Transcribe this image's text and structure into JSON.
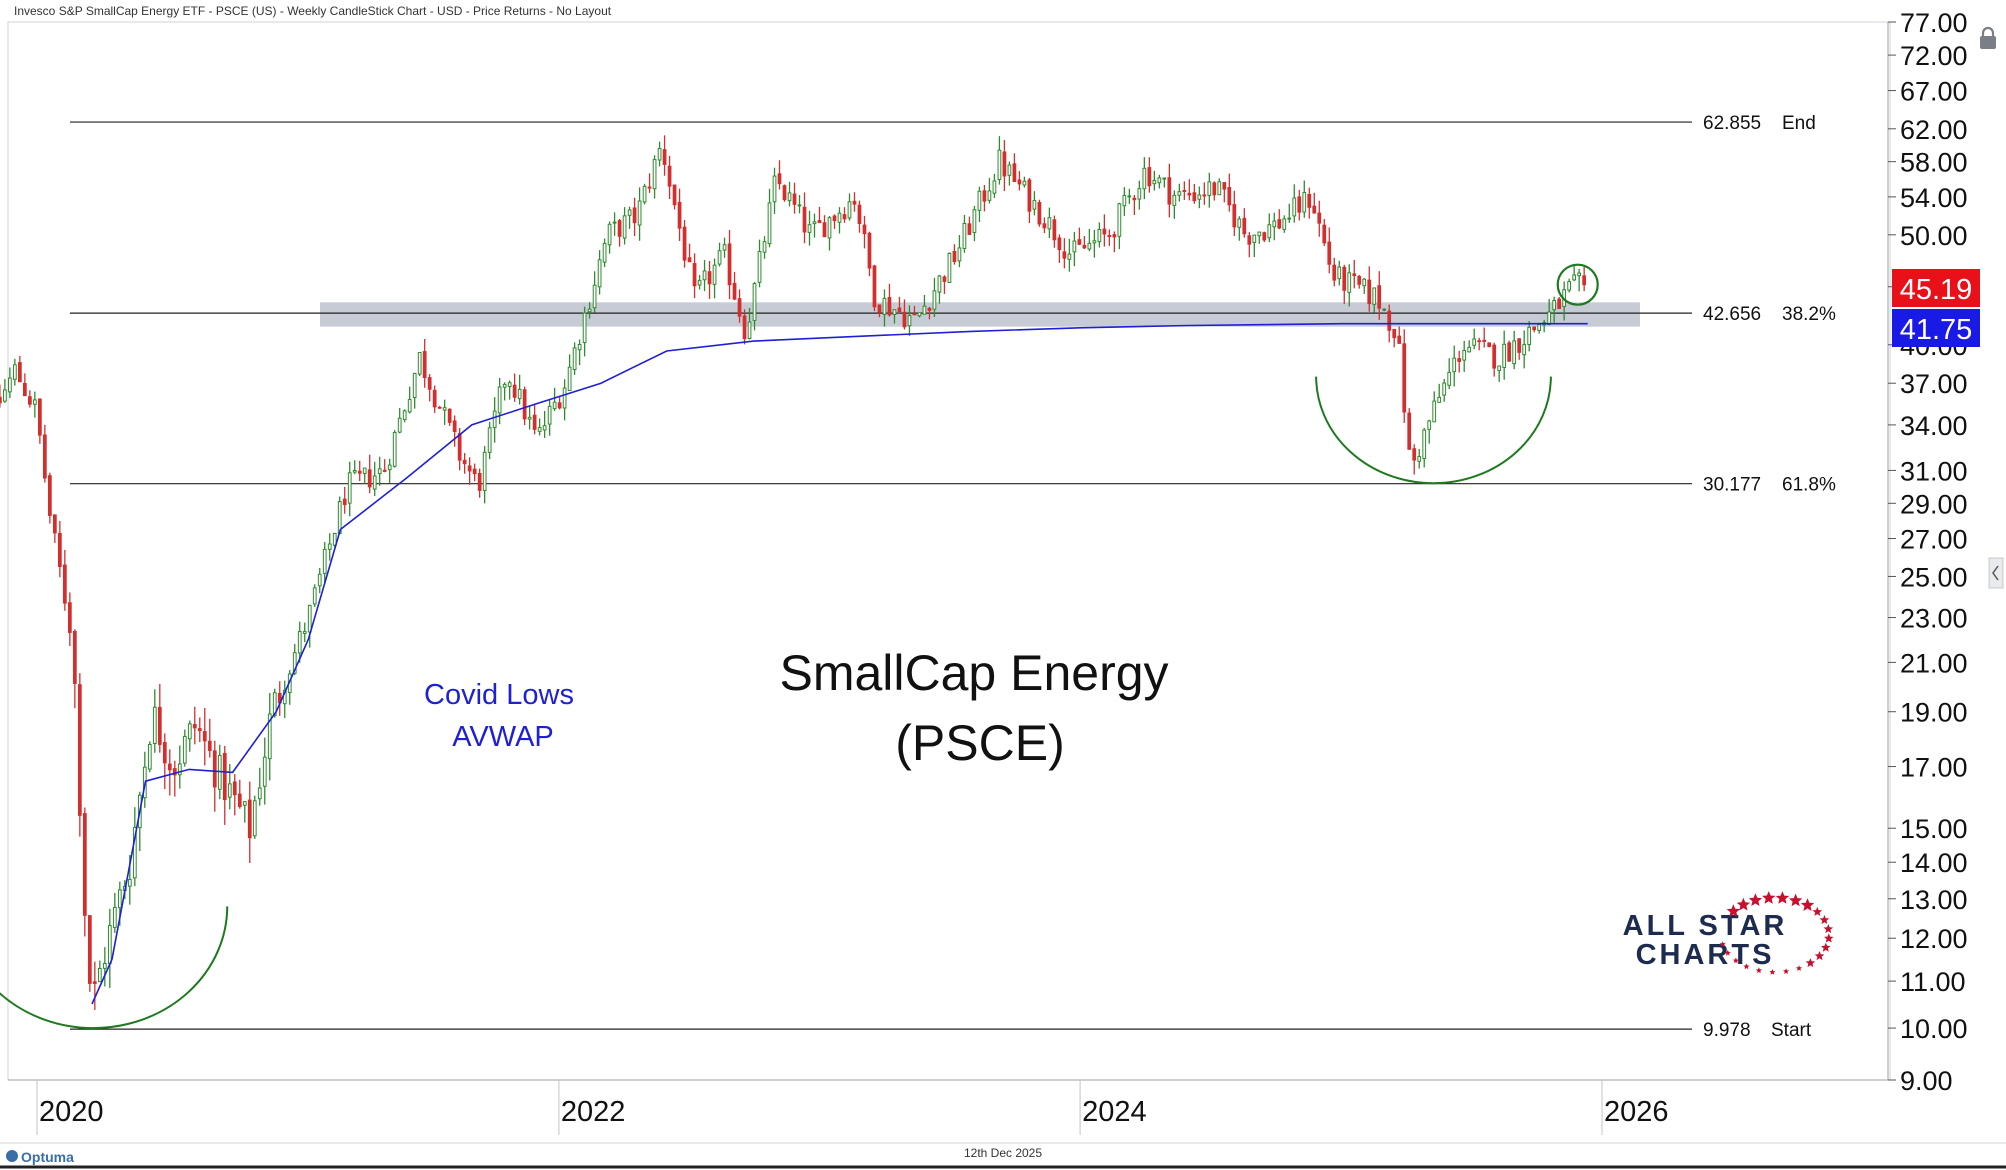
{
  "header": {
    "description": "Invesco S&P SmallCap Energy ETF - PSCE (US) - Weekly CandleStick Chart - USD - Price Returns - No Layout"
  },
  "footer": {
    "brand": "Optuma",
    "date": "12th Dec 2025"
  },
  "chart_title": {
    "line1": "SmallCap Energy",
    "line2": "(PSCE)"
  },
  "avwap_label": {
    "line1": "Covid Lows",
    "line2": "AVWAP"
  },
  "logo": {
    "line1": "ALL STAR",
    "line2": "CHARTS"
  },
  "price_badges": {
    "last_price": "45.19",
    "avwap_value": "41.75"
  },
  "colors": {
    "up": "#2e8b2e",
    "down": "#d32f2f",
    "avwap": "#1f1fd6",
    "arc": "#1e7a1e",
    "last_badge": "#e8111a",
    "avwap_badge": "#1a1ae6",
    "zone": "#b3bac8",
    "logo_navy": "#1d2b4f",
    "logo_red": "#c8102e"
  },
  "chart_data": {
    "type": "candlestick",
    "scale": "log",
    "ylim": [
      9.0,
      77.0
    ],
    "xlim": [
      "2019-09-01",
      "2026-12-31"
    ],
    "x_ticks": [
      "2020",
      "2022",
      "2024",
      "2026"
    ],
    "y_ticks": [
      "77.00",
      "72.00",
      "67.00",
      "62.00",
      "58.00",
      "54.00",
      "50.00",
      "45.00",
      "40.00",
      "37.00",
      "34.00",
      "31.00",
      "29.00",
      "27.00",
      "25.00",
      "23.00",
      "21.00",
      "19.00",
      "17.00",
      "15.00",
      "14.00",
      "13.00",
      "12.00",
      "11.00",
      "10.00",
      "9.00"
    ],
    "fib_levels": [
      {
        "value": 62.855,
        "value_label": "62.855",
        "tag": "End"
      },
      {
        "value": 42.656,
        "value_label": "42.656",
        "tag": "38.2%"
      },
      {
        "value": 30.177,
        "value_label": "30.177",
        "tag": "61.8%"
      },
      {
        "value": 9.978,
        "value_label": "9.978",
        "tag": "Start"
      }
    ],
    "resistance_zone": [
      41.5,
      43.6
    ],
    "price_path": [
      [
        "2019-09-01",
        29.5
      ],
      [
        "2019-10-15",
        33
      ],
      [
        "2019-12-01",
        38
      ],
      [
        "2019-12-31",
        35
      ],
      [
        "2020-01-20",
        28
      ],
      [
        "2020-02-20",
        22
      ],
      [
        "2020-03-10",
        12
      ],
      [
        "2020-03-18",
        10.5
      ],
      [
        "2020-04-10",
        12
      ],
      [
        "2020-05-10",
        14
      ],
      [
        "2020-06-10",
        19
      ],
      [
        "2020-07-10",
        17
      ],
      [
        "2020-08-10",
        18.5
      ],
      [
        "2020-09-10",
        16.8
      ],
      [
        "2020-10-25",
        15
      ],
      [
        "2020-11-25",
        19
      ],
      [
        "2021-01-15",
        23
      ],
      [
        "2021-03-10",
        30
      ],
      [
        "2021-05-01",
        31
      ],
      [
        "2021-06-20",
        39
      ],
      [
        "2021-08-15",
        32
      ],
      [
        "2021-09-10",
        30
      ],
      [
        "2021-10-20",
        38
      ],
      [
        "2021-12-01",
        33
      ],
      [
        "2022-01-10",
        37
      ],
      [
        "2022-03-10",
        50
      ],
      [
        "2022-04-20",
        52
      ],
      [
        "2022-05-25",
        60
      ],
      [
        "2022-07-10",
        44
      ],
      [
        "2022-08-20",
        48
      ],
      [
        "2022-09-20",
        41
      ],
      [
        "2022-11-01",
        56
      ],
      [
        "2022-12-20",
        50
      ],
      [
        "2023-02-20",
        54
      ],
      [
        "2023-03-20",
        44
      ],
      [
        "2023-05-15",
        42
      ],
      [
        "2023-07-10",
        48
      ],
      [
        "2023-09-10",
        58
      ],
      [
        "2023-11-10",
        52
      ],
      [
        "2023-12-20",
        48
      ],
      [
        "2024-02-10",
        50
      ],
      [
        "2024-04-01",
        57
      ],
      [
        "2024-05-15",
        54
      ],
      [
        "2024-07-10",
        55
      ],
      [
        "2024-08-20",
        50
      ],
      [
        "2024-10-01",
        51
      ],
      [
        "2024-11-20",
        54
      ],
      [
        "2024-12-20",
        46
      ],
      [
        "2025-02-20",
        44
      ],
      [
        "2025-03-20",
        41
      ],
      [
        "2025-04-08",
        31
      ],
      [
        "2025-05-10",
        35
      ],
      [
        "2025-06-20",
        40
      ],
      [
        "2025-08-10",
        39
      ],
      [
        "2025-09-20",
        41
      ],
      [
        "2025-10-20",
        42.5
      ],
      [
        "2025-11-20",
        45
      ],
      [
        "2025-12-12",
        45.19
      ]
    ],
    "avwap_path": [
      [
        "2020-03-18",
        10.5
      ],
      [
        "2020-04-15",
        11.5
      ],
      [
        "2020-06-01",
        16.5
      ],
      [
        "2020-08-01",
        16.9
      ],
      [
        "2020-10-01",
        16.8
      ],
      [
        "2020-12-01",
        19
      ],
      [
        "2021-01-15",
        22
      ],
      [
        "2021-03-01",
        27.5
      ],
      [
        "2021-06-01",
        30.5
      ],
      [
        "2021-09-01",
        34
      ],
      [
        "2021-12-01",
        35.5
      ],
      [
        "2022-03-01",
        37
      ],
      [
        "2022-06-01",
        39.5
      ],
      [
        "2022-10-01",
        40.3
      ],
      [
        "2023-03-01",
        40.7
      ],
      [
        "2023-08-01",
        41.1
      ],
      [
        "2024-01-01",
        41.4
      ],
      [
        "2024-06-01",
        41.6
      ],
      [
        "2025-01-01",
        41.75
      ],
      [
        "2025-12-12",
        41.75
      ]
    ],
    "annotations": [
      {
        "type": "arc",
        "center_date": "2020-03-20",
        "bottom_value": 10.0,
        "top_value": 12.8
      },
      {
        "type": "arc",
        "center_date": "2025-05-10",
        "bottom_value": 30.2,
        "top_value": 37.5
      },
      {
        "type": "circle",
        "date": "2025-11-28",
        "value": 45.19
      }
    ]
  }
}
